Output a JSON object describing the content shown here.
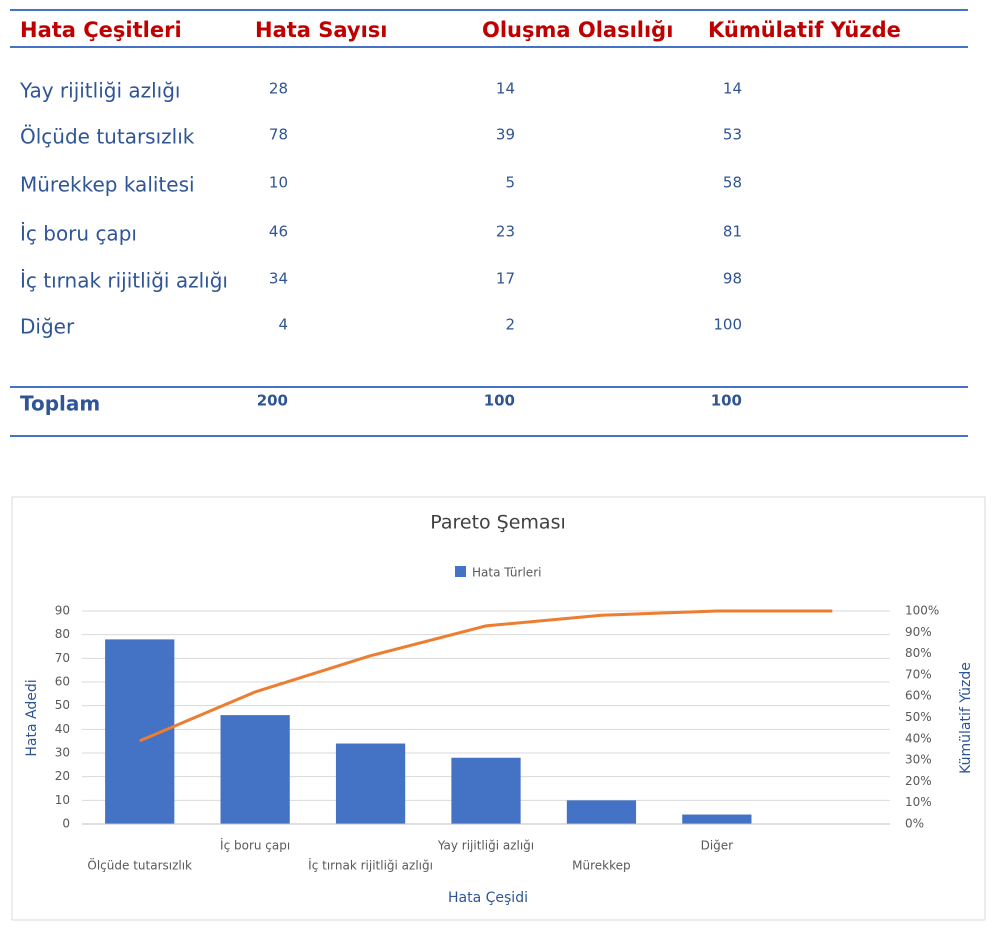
{
  "table": {
    "header": [
      "Hata Çeşitleri",
      "Hata Sayısı",
      "Oluşma Olasılığı",
      "Kümülatif Yüzde"
    ],
    "rows": [
      [
        "Yay rijitliği azlığı",
        28,
        14,
        14
      ],
      [
        "Ölçüde tutarsızlık",
        78,
        39,
        53
      ],
      [
        "Mürekkep kalitesi",
        10,
        5,
        58
      ],
      [
        "İç boru çapı",
        46,
        23,
        81
      ],
      [
        "İç tırnak rijitliği azlığı",
        34,
        17,
        98
      ],
      [
        "Diğer",
        4,
        2,
        100
      ]
    ],
    "total": [
      "Toplam",
      200,
      100,
      100
    ]
  },
  "chart_data": {
    "type": "bar",
    "title": "Pareto Şeması",
    "x_label": "Hata Çeşidi",
    "y_label": "Hata Adedi",
    "y2_label": "Kümülatif Yüzde",
    "categories": [
      "Ölçüde tutarsızlık",
      "İç boru çapı",
      "İç tırnak rijitliği azlığı",
      "Yay rijitliği azlığı",
      "Mürekkep",
      "Diğer",
      null
    ],
    "series": [
      {
        "name": "Hata Türleri",
        "type": "bar",
        "color": "#4472c4",
        "values": [
          78,
          46,
          34,
          28,
          10,
          4,
          null
        ]
      },
      {
        "type": "line",
        "axis": "y2",
        "color": "#ed7d31",
        "values": [
          39,
          62,
          79,
          93,
          98,
          100,
          100
        ]
      }
    ],
    "ylim": [
      0,
      90
    ],
    "yticks": [
      0,
      10,
      20,
      30,
      40,
      50,
      60,
      70,
      80,
      90
    ],
    "y2lim": [
      0,
      100
    ],
    "y2ticks": [
      {
        "value": 0,
        "label": "0%"
      },
      {
        "value": 10,
        "label": "10%"
      },
      {
        "value": 20,
        "label": "20%"
      },
      {
        "value": 30,
        "label": "30%"
      },
      {
        "value": 40,
        "label": "40%"
      },
      {
        "value": 50,
        "label": "50%"
      },
      {
        "value": 60,
        "label": "60%"
      },
      {
        "value": 70,
        "label": "70%"
      },
      {
        "value": 80,
        "label": "80%"
      },
      {
        "value": 90,
        "label": "90%"
      },
      {
        "value": 100,
        "label": "100%"
      }
    ],
    "grid": true,
    "legend": "top"
  }
}
